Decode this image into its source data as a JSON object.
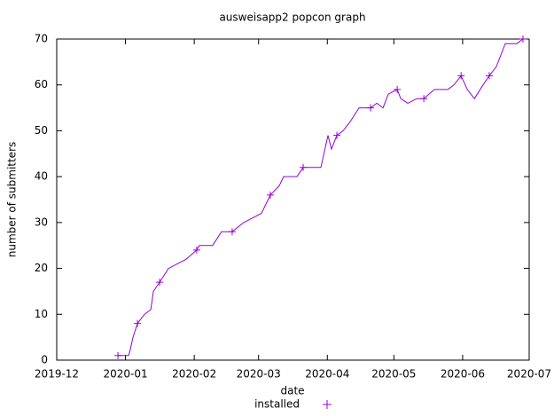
{
  "chart_data": {
    "type": "line",
    "title": "ausweisapp2 popcon graph",
    "x_label": "date",
    "y_label": "number of submitters",
    "x": [
      27.6,
      32.4,
      33,
      34.4,
      36.4,
      39.6,
      42.4,
      43.6,
      46.4,
      50.4,
      54.4,
      58.4,
      63.1,
      64.3,
      70.3,
      74.3,
      79.1,
      84.3,
      88.3,
      92.3,
      96.3,
      100.3,
      102.3,
      108.3,
      111.1,
      119.1,
      122.3,
      123.9,
      126.3,
      129.1,
      132.3,
      136.3,
      141.5,
      144.3,
      147.1,
      149.5,
      153.5,
      155.1,
      158.3,
      162.3,
      165.5,
      170.3,
      176.3,
      179.1,
      182.3,
      185.1,
      188.3,
      192.2,
      195.0,
      198.2,
      202.2,
      207.4,
      210.2
    ],
    "series": [
      {
        "name": "installed",
        "color": "#9400d3",
        "values": [
          1,
          1,
          2,
          5,
          8,
          10,
          11,
          15,
          17,
          20,
          21,
          22,
          24,
          25,
          25,
          28,
          28,
          30,
          31,
          32,
          36,
          38,
          40,
          40,
          42,
          42,
          49,
          46,
          49,
          50,
          52,
          55,
          55,
          56,
          55,
          58,
          59,
          57,
          56,
          57,
          57,
          59,
          59,
          60,
          62,
          59,
          57,
          60,
          62,
          64,
          69,
          69,
          70
        ]
      }
    ],
    "xlim": [
      0,
      213
    ],
    "xticks": [
      {
        "value": 0,
        "label": "2019-12"
      },
      {
        "value": 31,
        "label": "2020-01"
      },
      {
        "value": 62,
        "label": "2020-02"
      },
      {
        "value": 91,
        "label": "2020-03"
      },
      {
        "value": 122,
        "label": "2020-04"
      },
      {
        "value": 152,
        "label": "2020-05"
      },
      {
        "value": 183,
        "label": "2020-06"
      },
      {
        "value": 213,
        "label": "2020-07"
      }
    ],
    "ylim": [
      0,
      70
    ],
    "yticks": [
      0,
      10,
      20,
      30,
      40,
      50,
      60,
      70
    ],
    "grid": false
  }
}
